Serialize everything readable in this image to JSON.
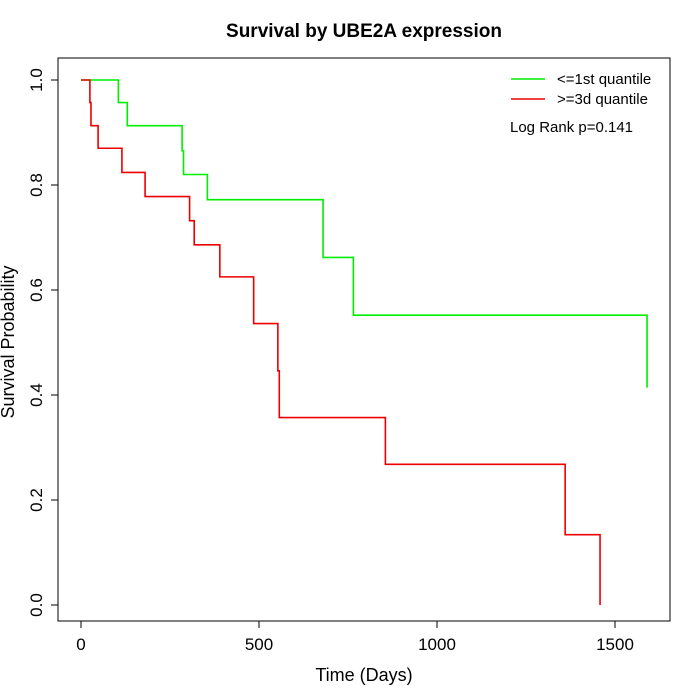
{
  "chart_data": {
    "type": "line",
    "title": "Survival by UBE2A expression",
    "xlabel": "Time (Days)",
    "ylabel": "Survival Probability",
    "xlim": [
      0,
      1600
    ],
    "ylim": [
      0,
      1
    ],
    "x_ticks": [
      0,
      500,
      1000,
      1500
    ],
    "y_ticks": [
      0.0,
      0.2,
      0.4,
      0.6,
      0.8,
      1.0
    ],
    "x_tick_labels": [
      "0",
      "500",
      "1000",
      "1500"
    ],
    "y_tick_labels": [
      "0.0",
      "0.2",
      "0.4",
      "0.6",
      "0.8",
      "1.0"
    ],
    "grid": false,
    "legend_position": "top-right",
    "annotation": "Log Rank p=0.141",
    "series": [
      {
        "name": "<=1st quantile",
        "color": "#00ee00",
        "step": true,
        "x": [
          0,
          105,
          130,
          280,
          284,
          288,
          355,
          650,
          680,
          765,
          1590
        ],
        "y": [
          1.0,
          0.957,
          0.913,
          0.913,
          0.865,
          0.82,
          0.772,
          0.772,
          0.662,
          0.552,
          0.414
        ]
      },
      {
        "name": ">=3d quantile",
        "color": "#ee0000",
        "step": true,
        "x": [
          0,
          25,
          28,
          48,
          115,
          180,
          305,
          318,
          390,
          485,
          553,
          557,
          560,
          855,
          1360,
          1458,
          1458
        ],
        "y": [
          1.0,
          0.957,
          0.913,
          0.87,
          0.824,
          0.778,
          0.732,
          0.686,
          0.625,
          0.536,
          0.446,
          0.357,
          0.357,
          0.268,
          0.134,
          0.134,
          0.0
        ]
      }
    ]
  }
}
